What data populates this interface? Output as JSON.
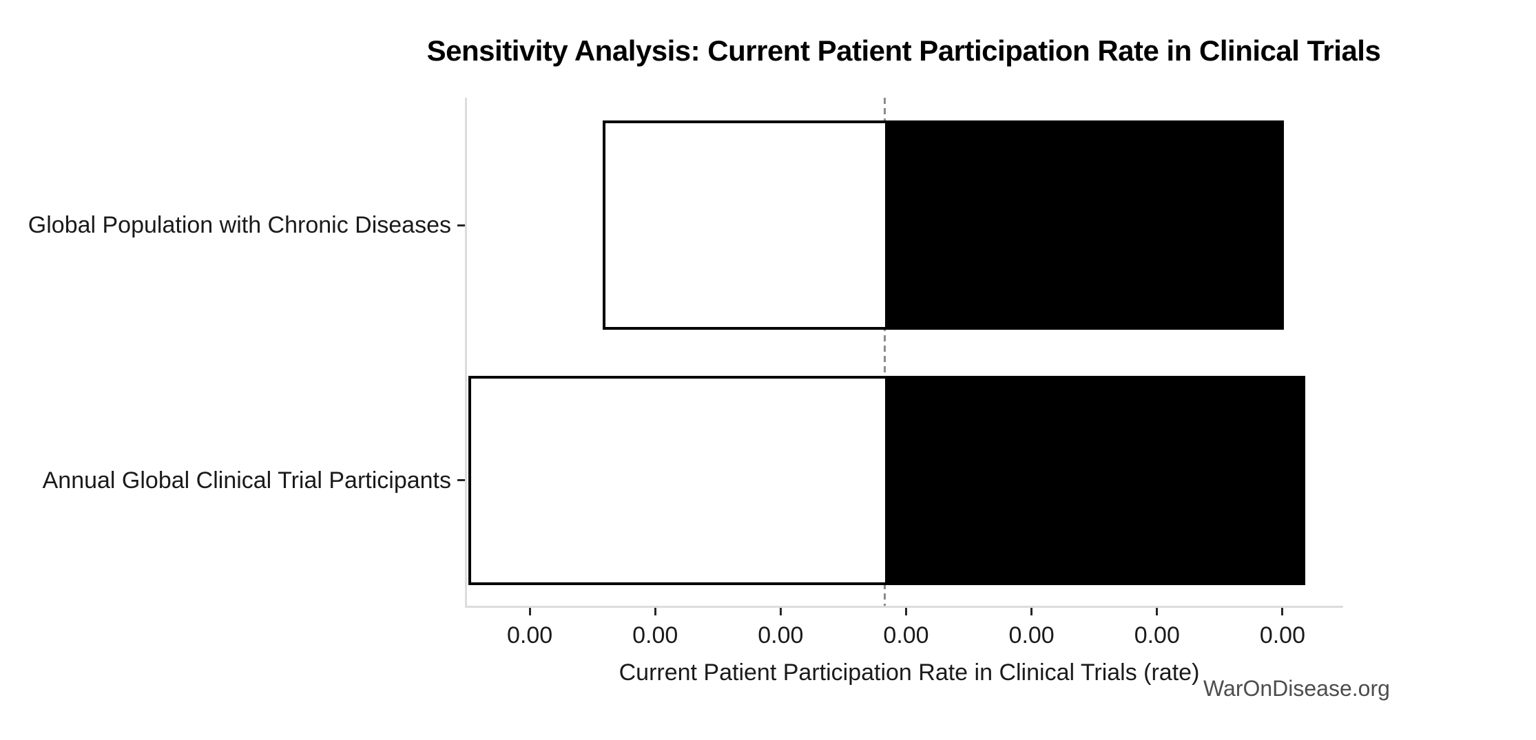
{
  "page": {
    "background": "#ffffff"
  },
  "chart_data": {
    "type": "bar",
    "variant": "tornado-sensitivity-horizontal",
    "title": "Sensitivity Analysis: Current Patient Participation Rate in Clinical Trials",
    "xlabel": "Current Patient Participation Rate in Clinical Trials (rate)",
    "watermark": "WarOnDisease.org",
    "grid": false,
    "legend": false,
    "categories": [
      "Global Population with Chronic Diseases",
      "Annual Global Clinical Trial Participants"
    ],
    "x_axis": {
      "xlim": [
        -0.5,
        6.5
      ],
      "tick_positions": [
        0,
        1,
        2,
        3,
        4,
        5,
        6
      ],
      "tick_labels": [
        "0.00",
        "0.00",
        "0.00",
        "0.00",
        "0.00",
        "0.00",
        "0.00"
      ],
      "note": "all visible tick labels read 0.00 (values rounded to two decimals); bar positions given in tick-index units"
    },
    "y_axis": {
      "ylim": [
        -0.5,
        1.5
      ],
      "inverted": true
    },
    "baseline_x": 2.83,
    "bar_height": 0.82,
    "bars": [
      {
        "category": "Global Population with Chronic Diseases",
        "y": 1,
        "low": 0.58,
        "high": 6.01
      },
      {
        "category": "Annual Global Clinical Trial Participants",
        "y": 0,
        "low": -0.49,
        "high": 6.18
      }
    ],
    "colors": {
      "low_fill": "#ffffff",
      "high_fill": "#000000",
      "bar_edge": "#000000",
      "baseline_dash": "#8c8c8c",
      "spine": "#dcdcdc",
      "tick_mark": "#262626",
      "text": "#1a1a1a",
      "title": "#000000",
      "watermark": "#4d4d4d"
    }
  }
}
